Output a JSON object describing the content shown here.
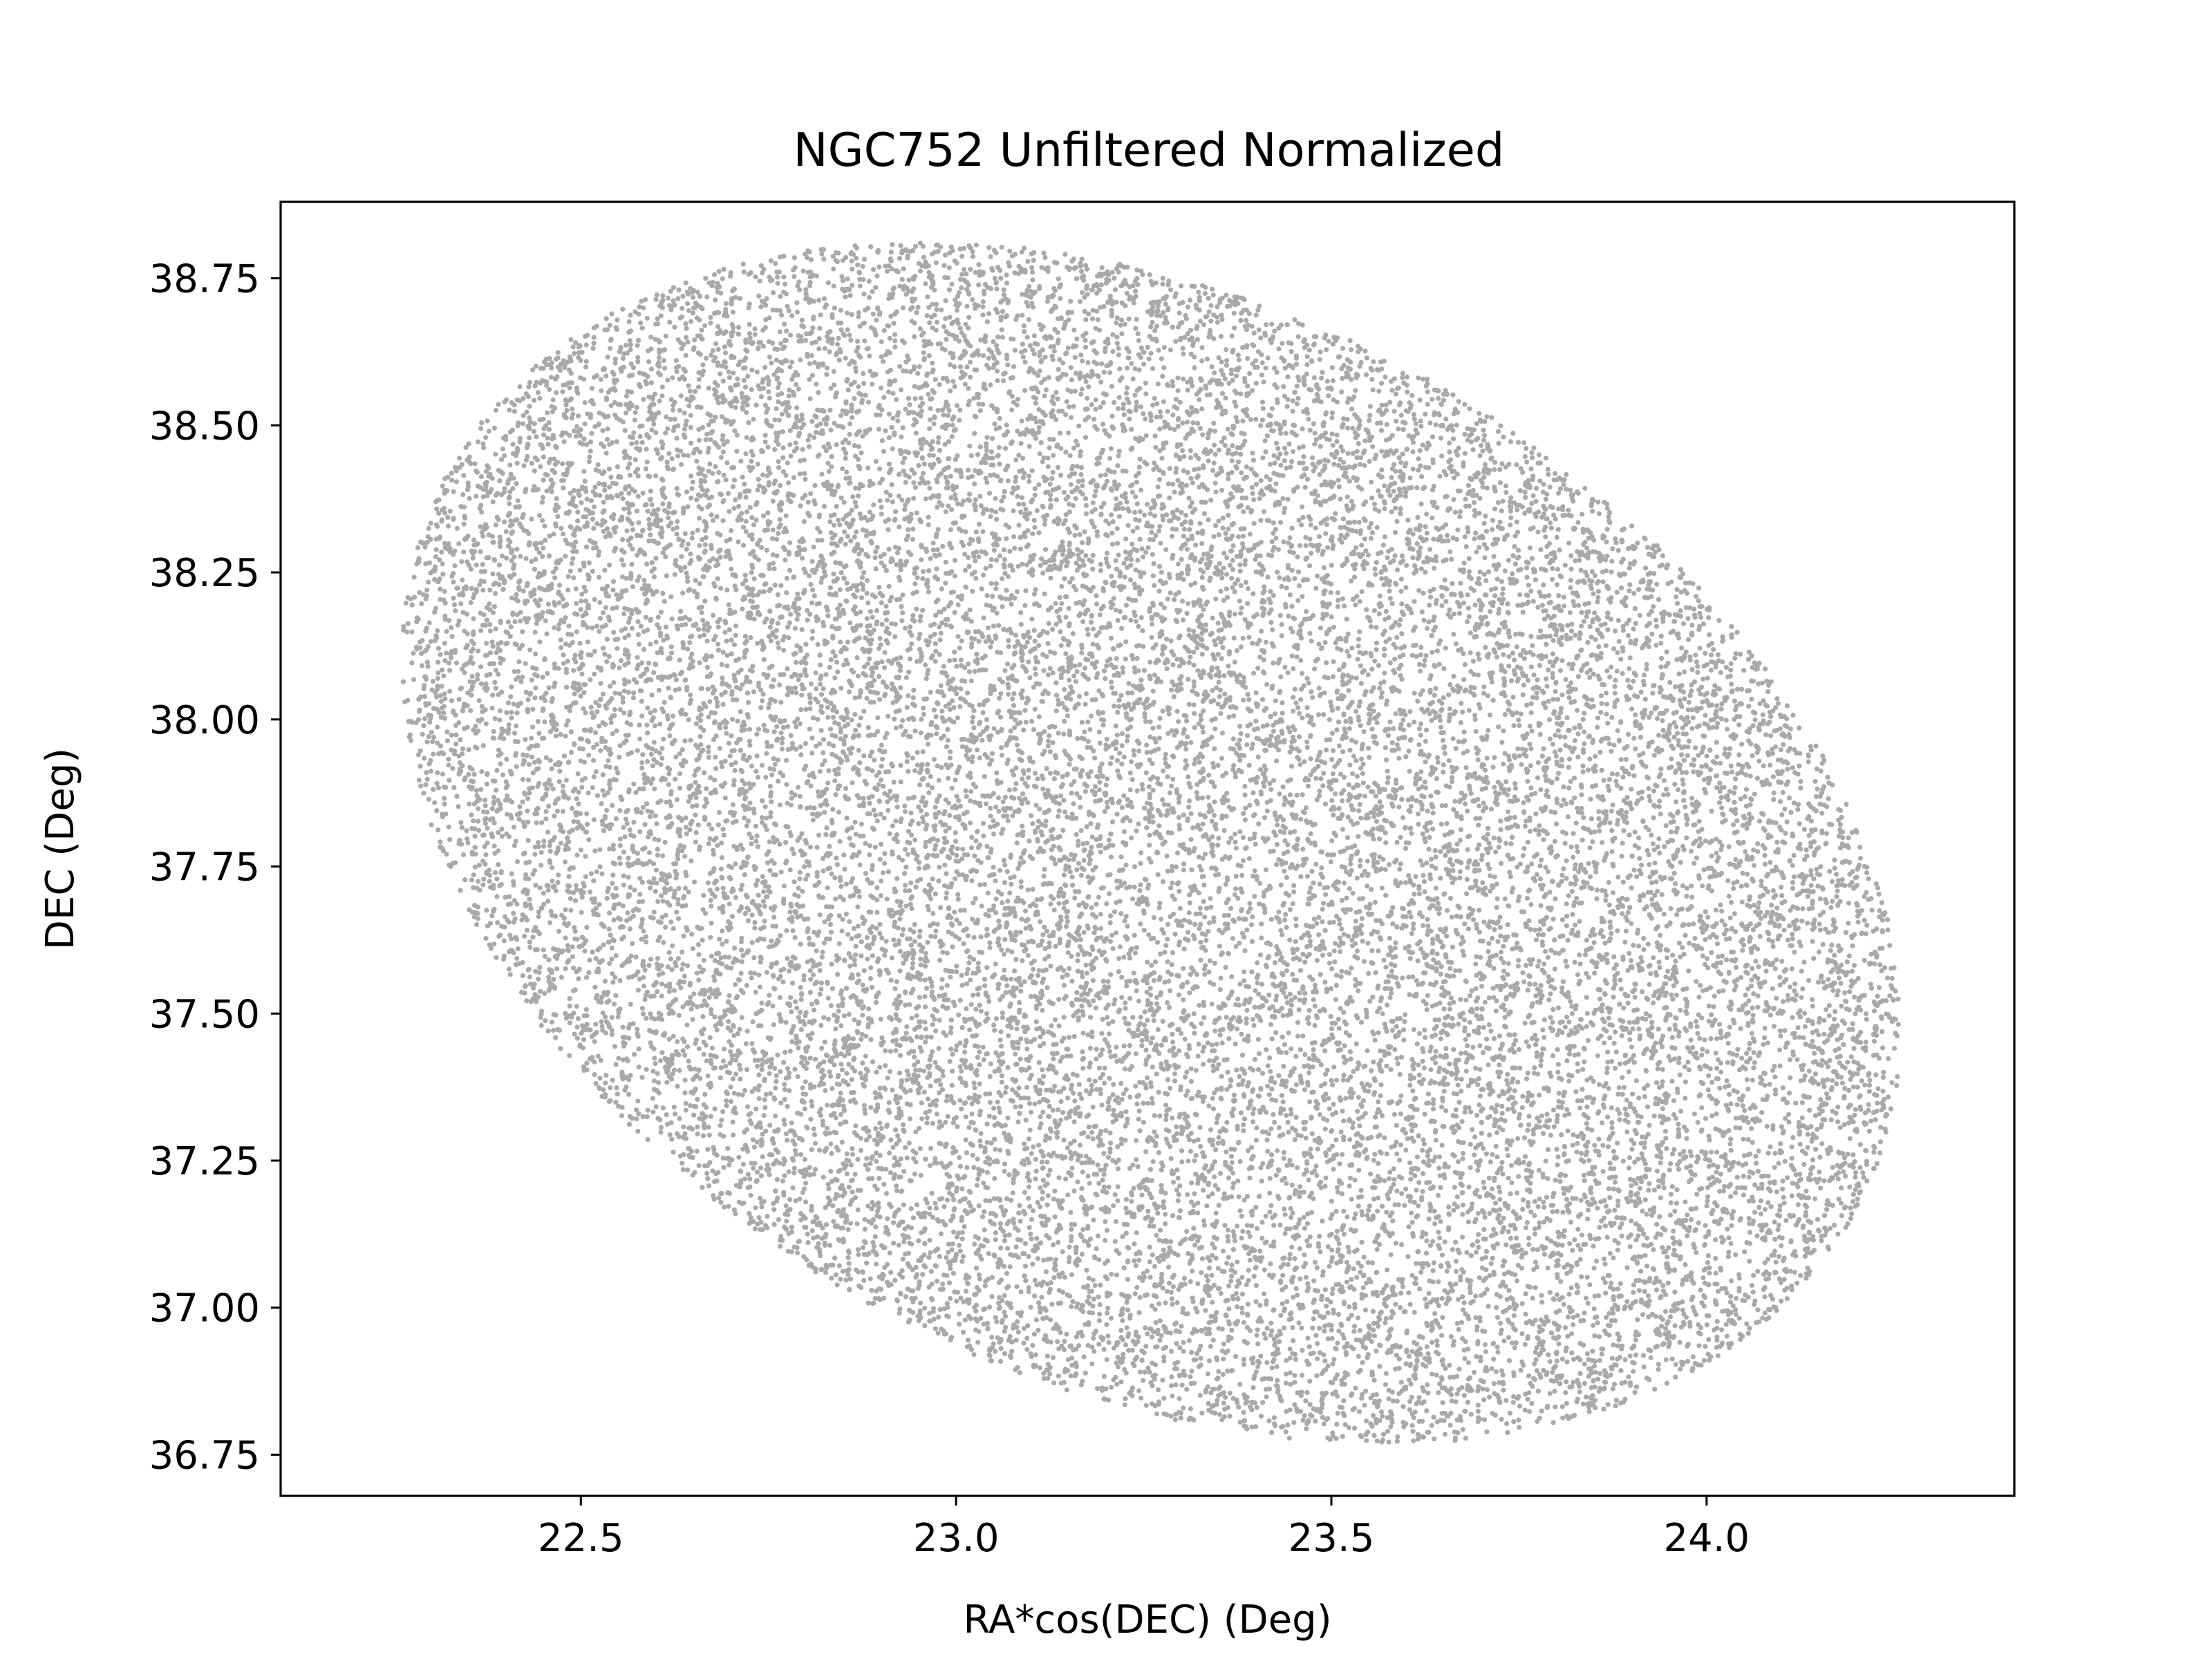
{
  "chart_data": {
    "type": "scatter",
    "title": "NGC752 Unfiltered Normalized",
    "xlabel": "RA*cos(DEC) (Deg)",
    "ylabel": "DEC (Deg)",
    "xlim": [
      22.1,
      24.41
    ],
    "ylim": [
      36.68,
      38.88
    ],
    "xticks": [
      22.5,
      23.0,
      23.5,
      24.0
    ],
    "xtick_labels": [
      "22.5",
      "23.0",
      "23.5",
      "24.0"
    ],
    "yticks": [
      36.75,
      37.0,
      37.25,
      37.5,
      37.75,
      38.0,
      38.25,
      38.5,
      38.75
    ],
    "ytick_labels": [
      "36.75",
      "37.00",
      "37.25",
      "37.50",
      "37.75",
      "38.00",
      "38.25",
      "38.50",
      "38.75"
    ],
    "grid": false,
    "legend": "none",
    "marker_color": "#a9a9a9",
    "series": [
      {
        "distribution": "uniform random points inside a tilted elliptical field",
        "point_count": 24000,
        "field_center": [
          23.26,
          37.79
        ],
        "field_extent_ra": [
          22.2,
          24.3
        ],
        "field_extent_dec": [
          36.79,
          38.79
        ]
      }
    ]
  }
}
